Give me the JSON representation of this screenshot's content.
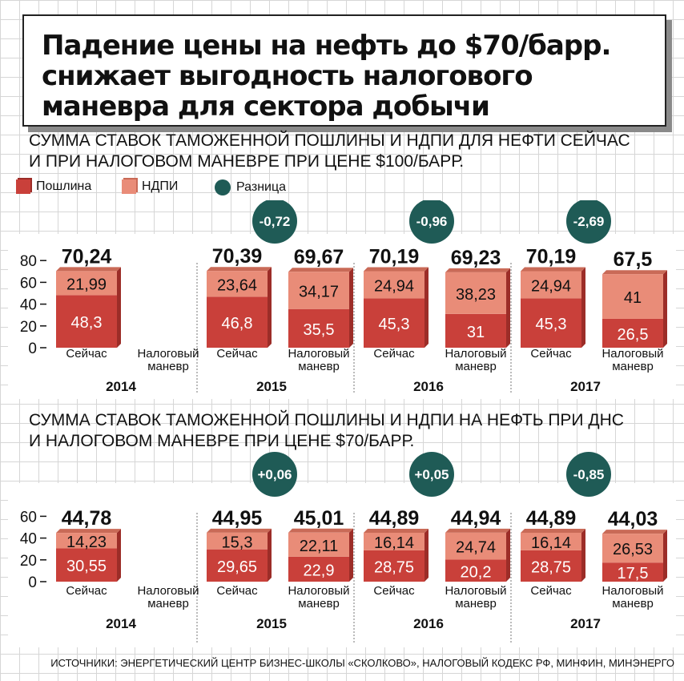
{
  "title": {
    "line1": "Падение цены на нефть до $70/барр.",
    "line2": "снижает выгодность налогового",
    "line3": "маневра для сектора добычи"
  },
  "colors": {
    "duty": "#c9403a",
    "duty_dark": "#9c2d28",
    "ndpi": "#e98c78",
    "ndpi_dark": "#c96a57",
    "diff": "#1f5b56"
  },
  "legend": {
    "duty": "Пошлина",
    "ndpi": "НДПИ",
    "diff": "Разница"
  },
  "source": "Источники: Энергетический центр бизнес-школы «Сколково», Налоговый кодекс РФ, Минфин, Минэнерго",
  "chart_data": [
    {
      "type": "bar",
      "stacked": true,
      "title_line1": "Сумма ставок таможенной пошлины и НДПИ для нефти сейчас",
      "title_line2": "и при налоговом маневре при цене $100/барр.",
      "ylim": [
        0,
        80
      ],
      "yticks": [
        "80",
        "60",
        "40",
        "20",
        "0"
      ],
      "groups": [
        {
          "year": "2014",
          "diff": null,
          "bars": [
            {
              "label": "Сейчас",
              "total": "70,24",
              "duty": 48.3,
              "ndpi": 21.99,
              "duty_label": "48,3",
              "ndpi_label": "21,99"
            }
          ]
        },
        {
          "year": "2015",
          "diff": "-0,72",
          "bars": [
            {
              "label": "Сейчас",
              "total": "70,39",
              "duty": 46.8,
              "ndpi": 23.64,
              "duty_label": "46,8",
              "ndpi_label": "23,64"
            },
            {
              "label": "Налоговый маневр",
              "total": "69,67",
              "duty": 35.5,
              "ndpi": 34.17,
              "duty_label": "35,5",
              "ndpi_label": "34,17"
            }
          ]
        },
        {
          "year": "2016",
          "diff": "-0,96",
          "bars": [
            {
              "label": "Сейчас",
              "total": "70,19",
              "duty": 45.3,
              "ndpi": 24.94,
              "duty_label": "45,3",
              "ndpi_label": "24,94"
            },
            {
              "label": "Налоговый маневр",
              "total": "69,23",
              "duty": 31,
              "ndpi": 38.23,
              "duty_label": "31",
              "ndpi_label": "38,23"
            }
          ]
        },
        {
          "year": "2017",
          "diff": "-2,69",
          "bars": [
            {
              "label": "Сейчас",
              "total": "70,19",
              "duty": 45.3,
              "ndpi": 24.94,
              "duty_label": "45,3",
              "ndpi_label": "24,94"
            },
            {
              "label": "Налоговый маневр",
              "total": "67,5",
              "duty": 26.5,
              "ndpi": 41,
              "duty_label": "26,5",
              "ndpi_label": "41"
            }
          ]
        }
      ],
      "empty_label": "Налоговый маневр"
    },
    {
      "type": "bar",
      "stacked": true,
      "title_line1": "Сумма ставок таможенной пошлины и НДПИ на нефть при ДНС",
      "title_line2": "и налоговом маневре при цене $70/барр.",
      "ylim": [
        0,
        60
      ],
      "yticks": [
        "60",
        "40",
        "20",
        "0"
      ],
      "groups": [
        {
          "year": "2014",
          "diff": null,
          "bars": [
            {
              "label": "Сейчас",
              "total": "44,78",
              "duty": 30.55,
              "ndpi": 14.23,
              "duty_label": "30,55",
              "ndpi_label": "14,23"
            }
          ]
        },
        {
          "year": "2015",
          "diff": "+0,06",
          "bars": [
            {
              "label": "Сейчас",
              "total": "44,95",
              "duty": 29.65,
              "ndpi": 15.3,
              "duty_label": "29,65",
              "ndpi_label": "15,3"
            },
            {
              "label": "Налоговый маневр",
              "total": "45,01",
              "duty": 22.9,
              "ndpi": 22.11,
              "duty_label": "22,9",
              "ndpi_label": "22,11"
            }
          ]
        },
        {
          "year": "2016",
          "diff": "+0,05",
          "bars": [
            {
              "label": "Сейчас",
              "total": "44,89",
              "duty": 28.75,
              "ndpi": 16.14,
              "duty_label": "28,75",
              "ndpi_label": "16,14"
            },
            {
              "label": "Налоговый маневр",
              "total": "44,94",
              "duty": 20.2,
              "ndpi": 24.74,
              "duty_label": "20,2",
              "ndpi_label": "24,74"
            }
          ]
        },
        {
          "year": "2017",
          "diff": "-0,85",
          "bars": [
            {
              "label": "Сейчас",
              "total": "44,89",
              "duty": 28.75,
              "ndpi": 16.14,
              "duty_label": "28,75",
              "ndpi_label": "16,14"
            },
            {
              "label": "Налоговый маневр",
              "total": "44,03",
              "duty": 17.5,
              "ndpi": 26.53,
              "duty_label": "17,5",
              "ndpi_label": "26,53"
            }
          ]
        }
      ],
      "empty_label": "Налоговый маневр"
    }
  ]
}
